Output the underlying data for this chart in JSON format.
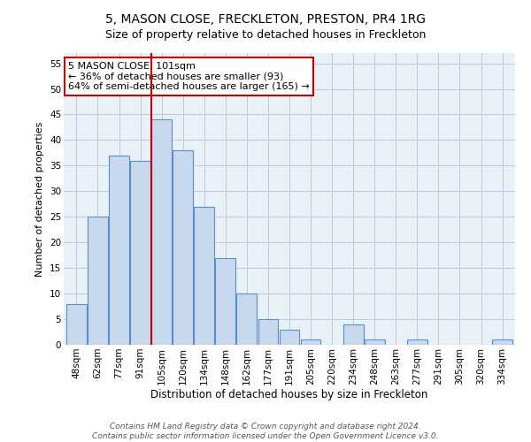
{
  "title": "5, MASON CLOSE, FRECKLETON, PRESTON, PR4 1RG",
  "subtitle": "Size of property relative to detached houses in Freckleton",
  "xlabel": "Distribution of detached houses by size in Freckleton",
  "ylabel": "Number of detached properties",
  "bar_labels": [
    "48sqm",
    "62sqm",
    "77sqm",
    "91sqm",
    "105sqm",
    "120sqm",
    "134sqm",
    "148sqm",
    "162sqm",
    "177sqm",
    "191sqm",
    "205sqm",
    "220sqm",
    "234sqm",
    "248sqm",
    "263sqm",
    "277sqm",
    "291sqm",
    "305sqm",
    "320sqm",
    "334sqm"
  ],
  "bar_values": [
    8,
    25,
    37,
    36,
    44,
    38,
    27,
    17,
    10,
    5,
    3,
    1,
    0,
    4,
    1,
    0,
    1,
    0,
    0,
    0,
    1
  ],
  "bar_color": "#c9d9ed",
  "bar_edge_color": "#5b8fc9",
  "background_color": "#ffffff",
  "plot_bg_color": "#e8f0f8",
  "grid_color": "#c0c8d8",
  "annotation_text": "5 MASON CLOSE: 101sqm\n← 36% of detached houses are smaller (93)\n64% of semi-detached houses are larger (165) →",
  "annotation_box_color": "#ffffff",
  "annotation_box_edge_color": "#cc0000",
  "annotation_text_color": "#000000",
  "vline_color": "#cc0000",
  "ylim": [
    0,
    57
  ],
  "yticks": [
    0,
    5,
    10,
    15,
    20,
    25,
    30,
    35,
    40,
    45,
    50,
    55
  ],
  "footer": "Contains HM Land Registry data © Crown copyright and database right 2024.\nContains public sector information licensed under the Open Government Licence v3.0.",
  "title_fontsize": 10,
  "subtitle_fontsize": 9,
  "xlabel_fontsize": 8.5,
  "ylabel_fontsize": 8,
  "tick_fontsize": 7.5,
  "annotation_fontsize": 8,
  "footer_fontsize": 6.5
}
